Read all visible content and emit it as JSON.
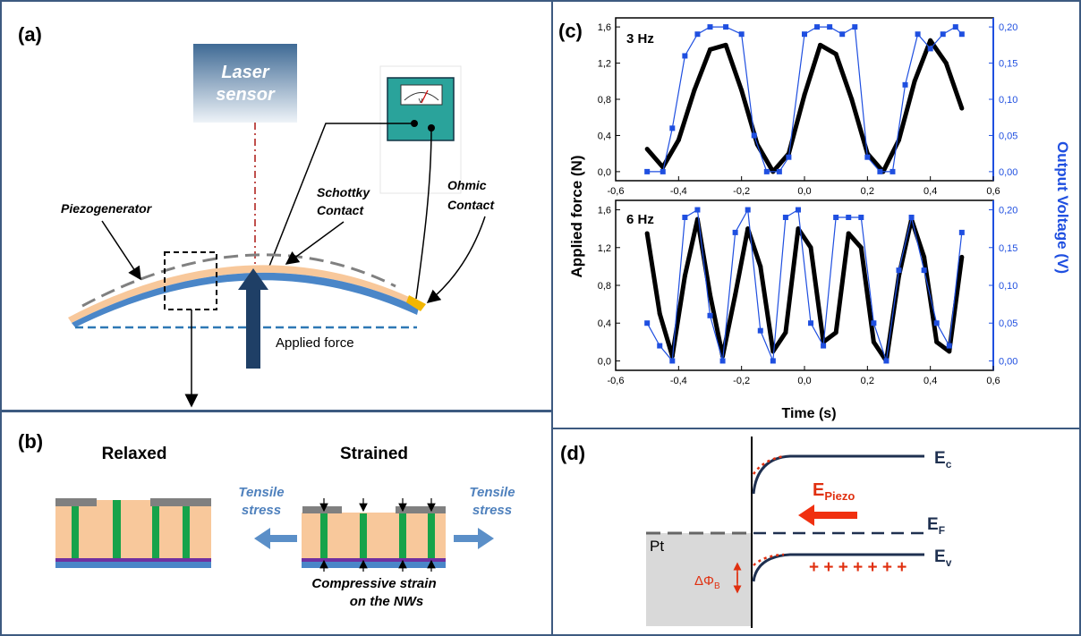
{
  "panels": {
    "a": {
      "label": "(a)",
      "laser_line1": "Laser",
      "laser_line2": "sensor",
      "meter_unit": "V",
      "schottky_line1": "Schottky",
      "schottky_line2": "Contact",
      "ohmic_line1": "Ohmic",
      "ohmic_line2": "Contact",
      "piezogenerator": "Piezogenerator",
      "applied_force": "Applied force"
    },
    "b": {
      "label": "(b)",
      "relaxed": "Relaxed",
      "strained": "Strained",
      "tensile_left_1": "Tensile",
      "tensile_left_2": "stress",
      "tensile_right_1": "Tensile",
      "tensile_right_2": "stress",
      "compressive_1": "Compressive strain",
      "compressive_2": "on the NWs"
    },
    "c": {
      "label": "(c)",
      "top_freq": "3 Hz",
      "bottom_freq": "6 Hz",
      "ylabel_left": "Applied force (N)",
      "ylabel_right": "Output Voltage (V)",
      "xlabel": "Time (s)"
    },
    "d": {
      "label": "(d)",
      "ec": "E",
      "ec_sub": "c",
      "ef": "E",
      "ef_sub": "F",
      "ev": "E",
      "ev_sub": "v",
      "epiezo": "E",
      "epiezo_sub": "Piezo",
      "metal": "Pt",
      "barrier": "ΔΦ",
      "barrier_sub": "B",
      "charges": "+ + + + + + +"
    }
  },
  "chart_data": [
    {
      "type": "line",
      "title": "3 Hz",
      "xlabel": "Time (s)",
      "ylabel": "Applied force (N)",
      "y2label": "Output Voltage (V)",
      "xlim": [
        -0.6,
        0.6
      ],
      "ylim": [
        -0.1,
        1.7
      ],
      "y2lim": [
        -0.0125,
        0.2125
      ],
      "x_ticks": [
        "-0,6",
        "-0,4",
        "-0,2",
        "0,0",
        "0,2",
        "0,4",
        "0,6"
      ],
      "y_ticks": [
        "0,0",
        "0,4",
        "0,8",
        "1,2",
        "1,6"
      ],
      "y2_ticks": [
        "0,00",
        "0,05",
        "0,10",
        "0,15",
        "0,20"
      ],
      "series": [
        {
          "name": "Applied force",
          "axis": "left",
          "color": "#000000",
          "x": [
            -0.5,
            -0.45,
            -0.4,
            -0.35,
            -0.3,
            -0.25,
            -0.2,
            -0.15,
            -0.1,
            -0.05,
            0.0,
            0.05,
            0.1,
            0.15,
            0.2,
            0.25,
            0.3,
            0.35,
            0.4,
            0.45,
            0.5
          ],
          "y": [
            0.25,
            0.05,
            0.35,
            0.9,
            1.35,
            1.4,
            0.9,
            0.3,
            0.0,
            0.2,
            0.85,
            1.4,
            1.3,
            0.8,
            0.2,
            0.0,
            0.35,
            1.0,
            1.45,
            1.2,
            0.7
          ]
        },
        {
          "name": "Output Voltage",
          "axis": "right",
          "color": "#1f4fe0",
          "x": [
            -0.5,
            -0.45,
            -0.42,
            -0.38,
            -0.34,
            -0.3,
            -0.25,
            -0.2,
            -0.16,
            -0.12,
            -0.08,
            -0.05,
            0.0,
            0.04,
            0.08,
            0.12,
            0.16,
            0.2,
            0.24,
            0.28,
            0.32,
            0.36,
            0.4,
            0.44,
            0.48,
            0.5
          ],
          "y": [
            0.0,
            0.0,
            0.06,
            0.16,
            0.19,
            0.2,
            0.2,
            0.19,
            0.05,
            0.0,
            0.0,
            0.02,
            0.19,
            0.2,
            0.2,
            0.19,
            0.2,
            0.02,
            0.0,
            0.0,
            0.12,
            0.19,
            0.17,
            0.19,
            0.2,
            0.19
          ]
        }
      ]
    },
    {
      "type": "line",
      "title": "6 Hz",
      "xlabel": "Time (s)",
      "ylabel": "Applied force (N)",
      "y2label": "Output Voltage (V)",
      "xlim": [
        -0.6,
        0.6
      ],
      "ylim": [
        -0.1,
        1.7
      ],
      "y2lim": [
        -0.0125,
        0.2125
      ],
      "x_ticks": [
        "-0,6",
        "-0,4",
        "-0,2",
        "0,0",
        "0,2",
        "0,4",
        "0,6"
      ],
      "y_ticks": [
        "0,0",
        "0,4",
        "0,8",
        "1,2",
        "1,6"
      ],
      "y2_ticks": [
        "0,00",
        "0,05",
        "0,10",
        "0,15",
        "0,20"
      ],
      "series": [
        {
          "name": "Applied force",
          "axis": "left",
          "color": "#000000",
          "x": [
            -0.5,
            -0.46,
            -0.42,
            -0.38,
            -0.34,
            -0.3,
            -0.26,
            -0.22,
            -0.18,
            -0.14,
            -0.1,
            -0.06,
            -0.02,
            0.02,
            0.06,
            0.1,
            0.14,
            0.18,
            0.22,
            0.26,
            0.3,
            0.34,
            0.38,
            0.42,
            0.46,
            0.5
          ],
          "y": [
            1.35,
            0.5,
            0.05,
            0.9,
            1.5,
            0.7,
            0.05,
            0.7,
            1.4,
            1.0,
            0.1,
            0.3,
            1.4,
            1.2,
            0.2,
            0.3,
            1.35,
            1.2,
            0.2,
            0.0,
            0.9,
            1.5,
            1.1,
            0.2,
            0.1,
            1.1
          ]
        },
        {
          "name": "Output Voltage",
          "axis": "right",
          "color": "#1f4fe0",
          "x": [
            -0.5,
            -0.46,
            -0.42,
            -0.38,
            -0.34,
            -0.3,
            -0.26,
            -0.22,
            -0.18,
            -0.14,
            -0.1,
            -0.06,
            -0.02,
            0.02,
            0.06,
            0.1,
            0.14,
            0.18,
            0.22,
            0.26,
            0.3,
            0.34,
            0.38,
            0.42,
            0.46,
            0.5
          ],
          "y": [
            0.05,
            0.02,
            0.0,
            0.19,
            0.2,
            0.06,
            0.0,
            0.17,
            0.2,
            0.04,
            0.0,
            0.19,
            0.2,
            0.05,
            0.02,
            0.19,
            0.19,
            0.19,
            0.05,
            0.0,
            0.12,
            0.19,
            0.12,
            0.05,
            0.02,
            0.17
          ]
        }
      ]
    }
  ]
}
